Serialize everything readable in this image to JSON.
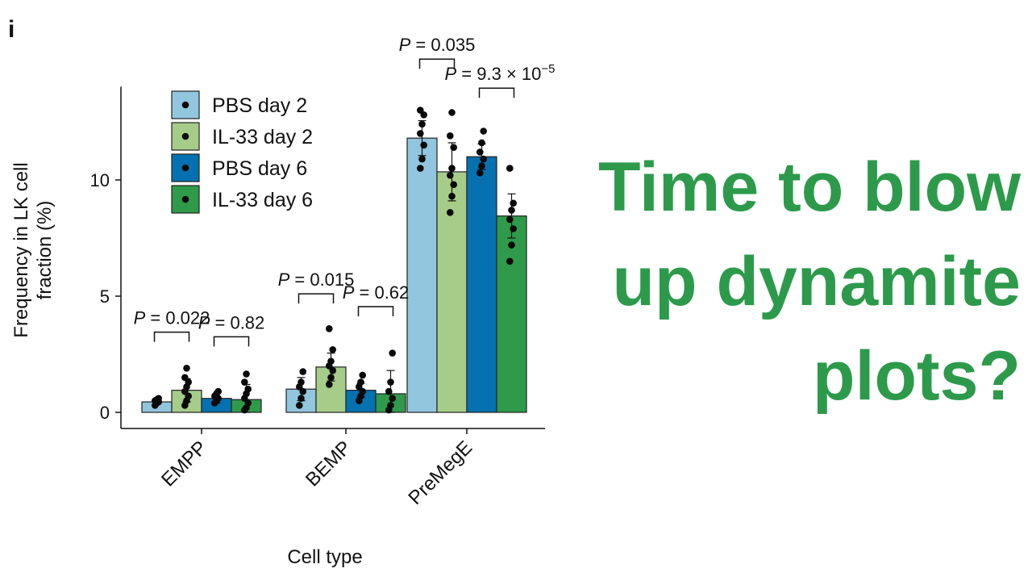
{
  "panel_label": "i",
  "headline": [
    "Time to blow",
    "up dynamite",
    "plots?"
  ],
  "colors": {
    "pbs_day2": "#92c5de",
    "il33_day2": "#a6cc8a",
    "pbs_day6": "#0571b0",
    "il33_day6": "#2f9a4a",
    "headline": "#2d9a4b"
  },
  "chart_data": {
    "type": "bar",
    "xlabel": "Cell type",
    "ylabel": [
      "Frequency in LK cell",
      "fraction (%)"
    ],
    "ylim": [
      0,
      14.5
    ],
    "yticks": [
      0,
      5,
      10
    ],
    "categories": [
      "EMPP",
      "BEMP",
      "PreMegE"
    ],
    "legend_position": "top-left",
    "series": [
      {
        "name": "PBS day 2",
        "color": "#92c5de",
        "values": [
          0.45,
          1.0,
          11.8
        ],
        "err": [
          0.1,
          0.5,
          0.75
        ],
        "points": [
          [
            0.3,
            0.4,
            0.45,
            0.5,
            0.55,
            0.6
          ],
          [
            0.3,
            0.6,
            0.9,
            1.1,
            1.3,
            1.75
          ],
          [
            10.5,
            10.9,
            11.5,
            12.0,
            12.4,
            12.8,
            13.0
          ]
        ]
      },
      {
        "name": "IL-33 day 2",
        "color": "#a6cc8a",
        "values": [
          0.95,
          1.95,
          10.35
        ],
        "err": [
          0.5,
          0.6,
          1.25
        ],
        "points": [
          [
            0.3,
            0.5,
            0.7,
            0.9,
            1.1,
            1.3,
            1.5,
            1.9
          ],
          [
            1.2,
            1.5,
            1.8,
            2.0,
            2.2,
            2.7,
            3.6
          ],
          [
            8.6,
            9.3,
            9.8,
            10.2,
            10.5,
            11.4,
            11.9,
            12.9
          ]
        ]
      },
      {
        "name": "PBS day 6",
        "color": "#0571b0",
        "values": [
          0.6,
          0.95,
          11.0
        ],
        "err": [
          0.2,
          0.3,
          0.55
        ],
        "points": [
          [
            0.4,
            0.5,
            0.6,
            0.7,
            0.8,
            0.9
          ],
          [
            0.5,
            0.7,
            0.9,
            1.1,
            1.3,
            1.6
          ],
          [
            10.3,
            10.6,
            10.9,
            11.2,
            11.6,
            12.1
          ]
        ]
      },
      {
        "name": "IL-33 day 6",
        "color": "#2f9a4a",
        "values": [
          0.55,
          0.8,
          8.45
        ],
        "err": [
          0.65,
          1.0,
          0.95
        ],
        "points": [
          [
            0.1,
            0.2,
            0.4,
            0.6,
            0.8,
            1.0,
            1.3,
            1.65
          ],
          [
            0.1,
            0.3,
            0.6,
            0.9,
            1.3,
            2.55
          ],
          [
            6.5,
            7.2,
            7.9,
            8.3,
            8.7,
            9.0,
            10.5
          ]
        ]
      }
    ],
    "annotations": [
      {
        "text": "P = 0.022",
        "category": 0,
        "pair": [
          0,
          1
        ]
      },
      {
        "text": "P = 0.82",
        "category": 0,
        "pair": [
          2,
          3
        ]
      },
      {
        "text": "P = 0.015",
        "category": 1,
        "pair": [
          0,
          1
        ]
      },
      {
        "text": "P = 0.62",
        "category": 1,
        "pair": [
          2,
          3
        ]
      },
      {
        "text": "P = 0.035",
        "category": 2,
        "pair": [
          0,
          1
        ]
      },
      {
        "text": "P = 9.3 × 10",
        "exponent": "−5",
        "category": 2,
        "pair": [
          2,
          3
        ]
      }
    ]
  }
}
